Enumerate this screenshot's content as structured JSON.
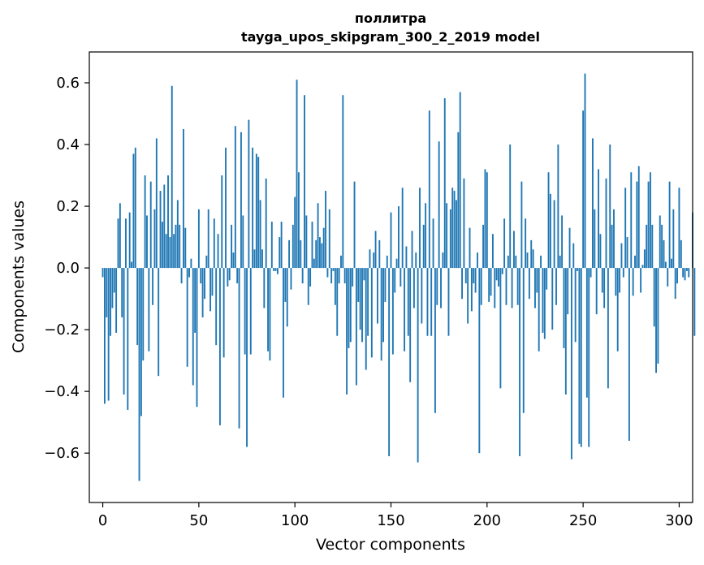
{
  "chart_data": {
    "type": "bar",
    "title": "поллитра",
    "subtitle": "tayga_upos_skipgram_300_2_2019 model",
    "xlabel": "Vector components",
    "ylabel": "Components values",
    "xlim": [
      -7,
      307
    ],
    "ylim": [
      -0.76,
      0.7
    ],
    "x_ticks": [
      0,
      50,
      100,
      150,
      200,
      250,
      300
    ],
    "x_tick_labels": [
      "0",
      "50",
      "100",
      "150",
      "200",
      "250",
      "300"
    ],
    "y_ticks": [
      -0.6,
      -0.4,
      -0.2,
      0.0,
      0.2,
      0.4,
      0.6
    ],
    "y_tick_labels": [
      "−0.6",
      "−0.4",
      "−0.2",
      "0.0",
      "0.2",
      "0.4",
      "0.6"
    ],
    "bar_color": "#1f77b4",
    "grid": false,
    "values": [
      -0.03,
      -0.44,
      -0.16,
      -0.43,
      -0.22,
      -0.13,
      -0.08,
      -0.21,
      0.16,
      0.21,
      -0.16,
      -0.41,
      0.16,
      -0.46,
      0.18,
      0.02,
      0.37,
      0.39,
      -0.25,
      -0.69,
      -0.48,
      -0.3,
      0.3,
      0.17,
      -0.27,
      0.28,
      -0.12,
      0.19,
      0.42,
      -0.35,
      0.25,
      0.15,
      0.27,
      0.11,
      0.3,
      0.1,
      0.59,
      0.11,
      0.14,
      0.22,
      0.14,
      -0.05,
      0.45,
      0.13,
      -0.32,
      -0.03,
      0.03,
      -0.38,
      -0.21,
      -0.45,
      0.19,
      -0.05,
      -0.16,
      -0.1,
      0.04,
      0.19,
      -0.14,
      -0.09,
      0.16,
      -0.25,
      0.11,
      -0.51,
      0.3,
      -0.29,
      0.39,
      -0.06,
      -0.04,
      0.14,
      0.05,
      0.46,
      -0.05,
      -0.52,
      0.44,
      0.17,
      -0.28,
      -0.58,
      0.48,
      -0.28,
      0.39,
      0.06,
      0.37,
      0.36,
      0.22,
      0.06,
      -0.13,
      0.29,
      -0.27,
      -0.3,
      0.15,
      -0.01,
      -0.01,
      -0.02,
      0.1,
      0.15,
      -0.42,
      -0.11,
      -0.19,
      0.09,
      -0.07,
      0.14,
      0.23,
      0.61,
      0.31,
      0.09,
      -0.05,
      0.56,
      0.17,
      -0.12,
      -0.06,
      0.15,
      0.03,
      0.09,
      0.21,
      0.1,
      0.08,
      0.13,
      0.25,
      -0.03,
      0.19,
      -0.05,
      -0.01,
      -0.12,
      -0.22,
      -0.05,
      0.04,
      0.56,
      -0.05,
      -0.41,
      -0.26,
      -0.24,
      -0.06,
      0.28,
      -0.38,
      -0.11,
      -0.2,
      -0.24,
      -0.04,
      -0.33,
      -0.22,
      0.06,
      -0.29,
      0.05,
      0.12,
      -0.18,
      0.09,
      -0.3,
      -0.24,
      -0.11,
      0.04,
      -0.61,
      0.18,
      -0.28,
      -0.08,
      0.03,
      0.2,
      -0.06,
      0.26,
      -0.27,
      0.07,
      -0.22,
      -0.37,
      0.12,
      -0.13,
      0.05,
      -0.63,
      0.26,
      -0.18,
      0.14,
      0.21,
      -0.22,
      0.51,
      -0.22,
      0.16,
      -0.47,
      -0.12,
      0.41,
      -0.13,
      0.05,
      0.55,
      0.21,
      -0.22,
      0.19,
      0.26,
      0.25,
      0.22,
      0.44,
      0.57,
      -0.1,
      0.29,
      -0.05,
      -0.18,
      0.13,
      -0.14,
      -0.05,
      -0.08,
      0.05,
      -0.6,
      -0.12,
      0.14,
      0.32,
      0.31,
      -0.11,
      -0.09,
      0.11,
      -0.13,
      -0.04,
      -0.06,
      -0.39,
      -0.02,
      0.16,
      -0.12,
      0.04,
      0.4,
      -0.13,
      0.12,
      0.04,
      -0.12,
      -0.61,
      0.28,
      -0.47,
      0.16,
      0.05,
      -0.1,
      0.09,
      0.06,
      -0.13,
      -0.08,
      -0.27,
      0.04,
      -0.21,
      -0.23,
      -0.07,
      0.31,
      0.24,
      -0.2,
      0.22,
      -0.12,
      0.4,
      0.04,
      0.17,
      -0.26,
      -0.41,
      -0.15,
      0.13,
      -0.62,
      0.08,
      -0.24,
      -0.01,
      -0.57,
      -0.58,
      0.51,
      0.63,
      -0.42,
      -0.58,
      -0.03,
      0.42,
      0.19,
      -0.15,
      0.32,
      0.11,
      -0.08,
      -0.13,
      0.29,
      -0.39,
      0.4,
      0.14,
      0.19,
      -0.09,
      -0.27,
      -0.08,
      0.08,
      -0.03,
      0.26,
      0.1,
      -0.56,
      0.31,
      -0.09,
      0.04,
      0.28,
      0.33,
      -0.08,
      0.01,
      0.06,
      0.14,
      0.28,
      0.31,
      0.14,
      -0.19,
      -0.34,
      -0.31,
      0.17,
      0.14,
      0.09,
      0.02,
      -0.06,
      0.28,
      0.03,
      0.19,
      -0.1,
      -0.05,
      0.26,
      0.09,
      -0.03,
      -0.04,
      -0.01,
      -0.03,
      0.0,
      0.18,
      -0.22
    ]
  }
}
